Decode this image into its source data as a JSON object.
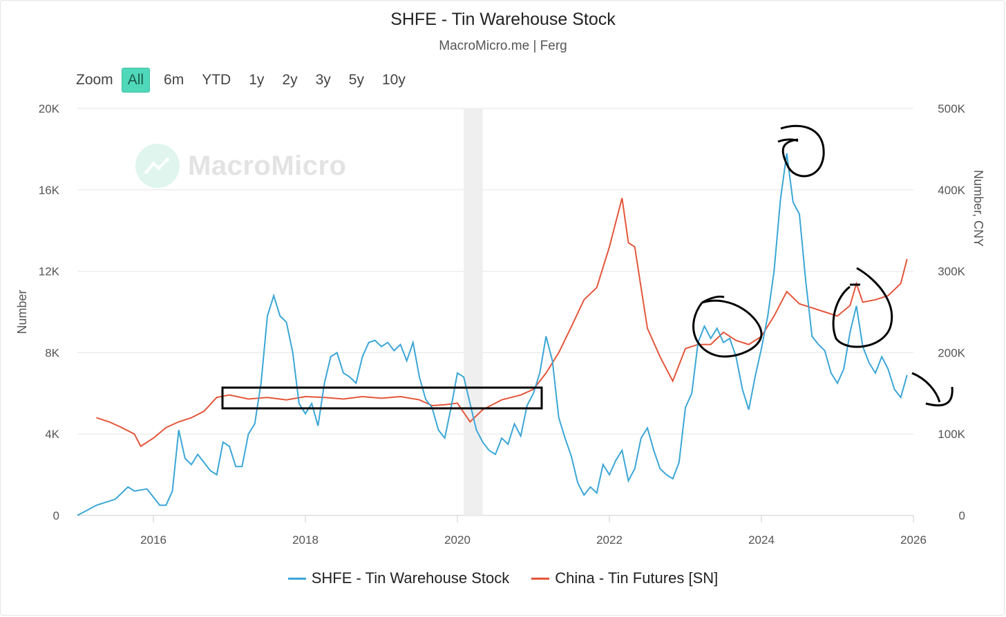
{
  "header": {
    "title": "SHFE - Tin Warehouse Stock",
    "subtitle": "MacroMicro.me | Ferg"
  },
  "zoom": {
    "label": "Zoom",
    "options": [
      "All",
      "6m",
      "YTD",
      "1y",
      "2y",
      "3y",
      "5y",
      "10y"
    ],
    "selected": "All"
  },
  "watermark": {
    "text": "MacroMicro"
  },
  "colors": {
    "stock": "#3aa6d6",
    "futures": "#e4553a",
    "active_zoom": "#4fd8b9",
    "shade": "#efefef",
    "grid": "#e6e6e6"
  },
  "chart_data": {
    "type": "line",
    "title": "SHFE - Tin Warehouse Stock",
    "subtitle": "MacroMicro.me | Ferg",
    "x_axis": {
      "type": "date",
      "range": [
        "2015-01",
        "2026-01"
      ],
      "ticks": [
        "2016",
        "2018",
        "2020",
        "2022",
        "2024",
        "2026"
      ]
    },
    "y_left": {
      "label": "Number",
      "range": [
        0,
        20000
      ],
      "ticks": [
        "0",
        "4K",
        "8K",
        "12K",
        "16K",
        "20K"
      ]
    },
    "y_right": {
      "label": "Number, CNY",
      "range": [
        0,
        500000
      ],
      "ticks": [
        "0",
        "100K",
        "200K",
        "300K",
        "400K",
        "500K"
      ]
    },
    "grid": true,
    "legend": "bottom",
    "shaded_period": [
      "2020-02",
      "2020-05"
    ],
    "series": [
      {
        "name": "SHFE - Tin Warehouse Stock",
        "axis": "left",
        "color": "#3aa6d6",
        "points": [
          [
            "2015-01",
            0
          ],
          [
            "2015-04",
            500
          ],
          [
            "2015-07",
            800
          ],
          [
            "2015-09",
            1400
          ],
          [
            "2015-10",
            1200
          ],
          [
            "2015-12",
            1300
          ],
          [
            "2016-01",
            900
          ],
          [
            "2016-02",
            500
          ],
          [
            "2016-03",
            500
          ],
          [
            "2016-04",
            1200
          ],
          [
            "2016-05",
            4200
          ],
          [
            "2016-06",
            2800
          ],
          [
            "2016-07",
            2500
          ],
          [
            "2016-08",
            3000
          ],
          [
            "2016-09",
            2600
          ],
          [
            "2016-10",
            2200
          ],
          [
            "2016-11",
            2000
          ],
          [
            "2016-12",
            3600
          ],
          [
            "2017-01",
            3400
          ],
          [
            "2017-02",
            2400
          ],
          [
            "2017-03",
            2400
          ],
          [
            "2017-04",
            4000
          ],
          [
            "2017-05",
            4500
          ],
          [
            "2017-06",
            6500
          ],
          [
            "2017-07",
            9800
          ],
          [
            "2017-08",
            10800
          ],
          [
            "2017-09",
            9800
          ],
          [
            "2017-10",
            9500
          ],
          [
            "2017-11",
            8000
          ],
          [
            "2017-12",
            5500
          ],
          [
            "2018-01",
            5000
          ],
          [
            "2018-02",
            5500
          ],
          [
            "2018-03",
            4400
          ],
          [
            "2018-04",
            6500
          ],
          [
            "2018-05",
            7800
          ],
          [
            "2018-06",
            8000
          ],
          [
            "2018-07",
            7000
          ],
          [
            "2018-08",
            6800
          ],
          [
            "2018-09",
            6500
          ],
          [
            "2018-10",
            7800
          ],
          [
            "2018-11",
            8500
          ],
          [
            "2018-12",
            8600
          ],
          [
            "2019-01",
            8300
          ],
          [
            "2019-02",
            8500
          ],
          [
            "2019-03",
            8100
          ],
          [
            "2019-04",
            8400
          ],
          [
            "2019-05",
            7600
          ],
          [
            "2019-06",
            8500
          ],
          [
            "2019-07",
            6800
          ],
          [
            "2019-08",
            5700
          ],
          [
            "2019-09",
            5300
          ],
          [
            "2019-10",
            4200
          ],
          [
            "2019-11",
            3800
          ],
          [
            "2019-12",
            5300
          ],
          [
            "2020-01",
            7000
          ],
          [
            "2020-02",
            6800
          ],
          [
            "2020-03",
            5500
          ],
          [
            "2020-04",
            4200
          ],
          [
            "2020-05",
            3600
          ],
          [
            "2020-06",
            3200
          ],
          [
            "2020-07",
            3000
          ],
          [
            "2020-08",
            3800
          ],
          [
            "2020-09",
            3500
          ],
          [
            "2020-10",
            4500
          ],
          [
            "2020-11",
            3900
          ],
          [
            "2020-12",
            5400
          ],
          [
            "2021-01",
            6000
          ],
          [
            "2021-02",
            7000
          ],
          [
            "2021-03",
            8800
          ],
          [
            "2021-04",
            7600
          ],
          [
            "2021-05",
            4800
          ],
          [
            "2021-06",
            3800
          ],
          [
            "2021-07",
            2900
          ],
          [
            "2021-08",
            1600
          ],
          [
            "2021-09",
            1000
          ],
          [
            "2021-10",
            1400
          ],
          [
            "2021-11",
            1100
          ],
          [
            "2021-12",
            2500
          ],
          [
            "2022-01",
            2000
          ],
          [
            "2022-02",
            2700
          ],
          [
            "2022-03",
            3200
          ],
          [
            "2022-04",
            1700
          ],
          [
            "2022-05",
            2300
          ],
          [
            "2022-06",
            3800
          ],
          [
            "2022-07",
            4300
          ],
          [
            "2022-08",
            3200
          ],
          [
            "2022-09",
            2300
          ],
          [
            "2022-10",
            2000
          ],
          [
            "2022-11",
            1800
          ],
          [
            "2022-12",
            2600
          ],
          [
            "2023-01",
            5300
          ],
          [
            "2023-02",
            6000
          ],
          [
            "2023-03",
            8500
          ],
          [
            "2023-04",
            9300
          ],
          [
            "2023-05",
            8700
          ],
          [
            "2023-06",
            9200
          ],
          [
            "2023-07",
            8500
          ],
          [
            "2023-08",
            8700
          ],
          [
            "2023-09",
            7800
          ],
          [
            "2023-10",
            6200
          ],
          [
            "2023-11",
            5200
          ],
          [
            "2023-12",
            6800
          ],
          [
            "2024-01",
            8200
          ],
          [
            "2024-02",
            9800
          ],
          [
            "2024-03",
            12000
          ],
          [
            "2024-04",
            15500
          ],
          [
            "2024-05",
            17800
          ],
          [
            "2024-06",
            15400
          ],
          [
            "2024-07",
            14800
          ],
          [
            "2024-08",
            11500
          ],
          [
            "2024-09",
            8800
          ],
          [
            "2024-10",
            8400
          ],
          [
            "2024-11",
            8100
          ],
          [
            "2024-12",
            7000
          ],
          [
            "2025-01",
            6500
          ],
          [
            "2025-02",
            7200
          ],
          [
            "2025-03",
            9000
          ],
          [
            "2025-04",
            10300
          ],
          [
            "2025-05",
            8300
          ],
          [
            "2025-06",
            7500
          ],
          [
            "2025-07",
            7000
          ],
          [
            "2025-08",
            7800
          ],
          [
            "2025-09",
            7200
          ],
          [
            "2025-10",
            6200
          ],
          [
            "2025-11",
            5800
          ],
          [
            "2025-12",
            6900
          ]
        ]
      },
      {
        "name": "China - Tin Futures [SN]",
        "axis": "right",
        "color": "#e4553a",
        "points": [
          [
            "2015-04",
            120000
          ],
          [
            "2015-06",
            115000
          ],
          [
            "2015-08",
            108000
          ],
          [
            "2015-10",
            100000
          ],
          [
            "2015-11",
            85000
          ],
          [
            "2016-01",
            95000
          ],
          [
            "2016-03",
            108000
          ],
          [
            "2016-05",
            115000
          ],
          [
            "2016-07",
            120000
          ],
          [
            "2016-09",
            128000
          ],
          [
            "2016-11",
            145000
          ],
          [
            "2017-01",
            148000
          ],
          [
            "2017-04",
            143000
          ],
          [
            "2017-07",
            145000
          ],
          [
            "2017-10",
            142000
          ],
          [
            "2018-01",
            146000
          ],
          [
            "2018-04",
            145000
          ],
          [
            "2018-07",
            143000
          ],
          [
            "2018-10",
            146000
          ],
          [
            "2019-01",
            144000
          ],
          [
            "2019-04",
            146000
          ],
          [
            "2019-07",
            142000
          ],
          [
            "2019-09",
            135000
          ],
          [
            "2019-11",
            136000
          ],
          [
            "2020-01",
            138000
          ],
          [
            "2020-03",
            115000
          ],
          [
            "2020-05",
            130000
          ],
          [
            "2020-08",
            142000
          ],
          [
            "2020-11",
            148000
          ],
          [
            "2021-01",
            155000
          ],
          [
            "2021-03",
            175000
          ],
          [
            "2021-05",
            200000
          ],
          [
            "2021-07",
            232000
          ],
          [
            "2021-09",
            265000
          ],
          [
            "2021-11",
            280000
          ],
          [
            "2022-01",
            330000
          ],
          [
            "2022-03",
            390000
          ],
          [
            "2022-04",
            335000
          ],
          [
            "2022-05",
            330000
          ],
          [
            "2022-06",
            280000
          ],
          [
            "2022-07",
            230000
          ],
          [
            "2022-09",
            195000
          ],
          [
            "2022-11",
            165000
          ],
          [
            "2023-01",
            205000
          ],
          [
            "2023-03",
            210000
          ],
          [
            "2023-05",
            210000
          ],
          [
            "2023-07",
            225000
          ],
          [
            "2023-09",
            215000
          ],
          [
            "2023-11",
            210000
          ],
          [
            "2024-01",
            220000
          ],
          [
            "2024-03",
            245000
          ],
          [
            "2024-05",
            275000
          ],
          [
            "2024-07",
            260000
          ],
          [
            "2024-09",
            255000
          ],
          [
            "2024-11",
            250000
          ],
          [
            "2025-01",
            245000
          ],
          [
            "2025-03",
            258000
          ],
          [
            "2025-04",
            285000
          ],
          [
            "2025-05",
            262000
          ],
          [
            "2025-07",
            265000
          ],
          [
            "2025-09",
            270000
          ],
          [
            "2025-11",
            285000
          ],
          [
            "2025-12",
            315000
          ]
        ]
      }
    ]
  }
}
